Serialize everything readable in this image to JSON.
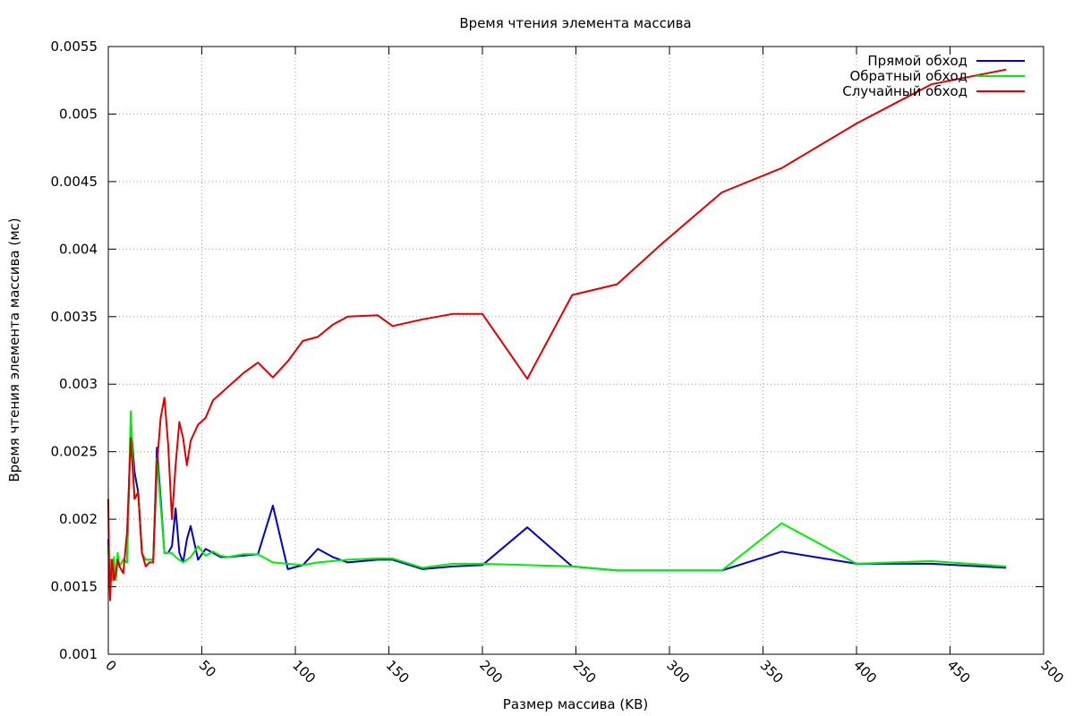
{
  "chart_data": {
    "type": "line",
    "title": "Время чтения элемента массива",
    "xlabel": "Размер массива (KB)",
    "ylabel": "Время чтения элемента массива (мс)",
    "xlim": [
      0,
      500
    ],
    "ylim": [
      0.001,
      0.0055
    ],
    "xticks": [
      0,
      50,
      100,
      150,
      200,
      250,
      300,
      350,
      400,
      450,
      500
    ],
    "yticks": [
      0.001,
      0.0015,
      0.002,
      0.0025,
      0.003,
      0.0035,
      0.004,
      0.0045,
      0.005,
      0.0055
    ],
    "xtick_labels": [
      "0",
      "50",
      "100",
      "150",
      "200",
      "250",
      "300",
      "350",
      "400",
      "450",
      "500"
    ],
    "ytick_labels": [
      "0.001",
      "0.0015",
      "0.002",
      "0.0025",
      "0.003",
      "0.0035",
      "0.004",
      "0.0045",
      "0.005",
      "0.0055"
    ],
    "grid": true,
    "legend_position": "top-right",
    "series": [
      {
        "name": "Прямой обход",
        "color": "#0000cc",
        "x": [
          0,
          0.5,
          1,
          1.5,
          2,
          3,
          4,
          5,
          6,
          8,
          10,
          12,
          14,
          16,
          18,
          20,
          22,
          24,
          26,
          28,
          30,
          32,
          34,
          36,
          38,
          40,
          42,
          44,
          48,
          52,
          56,
          60,
          64,
          72,
          80,
          88,
          96,
          104,
          112,
          120,
          128,
          144,
          152,
          168,
          184,
          200,
          224,
          248,
          272,
          296,
          328,
          360,
          400,
          440,
          480
        ],
        "y": [
          0.00185,
          0.0016,
          0.00147,
          0.0017,
          0.00155,
          0.00168,
          0.00155,
          0.00172,
          0.00165,
          0.0017,
          0.00168,
          0.00272,
          0.00235,
          0.0022,
          0.00175,
          0.0017,
          0.0017,
          0.0017,
          0.00253,
          0.00215,
          0.00175,
          0.00175,
          0.0018,
          0.00208,
          0.00175,
          0.00168,
          0.00185,
          0.00195,
          0.0017,
          0.00178,
          0.00175,
          0.00172,
          0.00172,
          0.00173,
          0.00174,
          0.0021,
          0.00163,
          0.00166,
          0.00178,
          0.00172,
          0.00168,
          0.0017,
          0.0017,
          0.00163,
          0.00165,
          0.00166,
          0.00194,
          0.00165,
          0.00162,
          0.00162,
          0.00162,
          0.00176,
          0.00167,
          0.00167,
          0.00164
        ]
      },
      {
        "name": "Обратный обход",
        "color": "#00ee00",
        "x": [
          0,
          0.5,
          1,
          1.5,
          2,
          3,
          4,
          5,
          6,
          8,
          10,
          12,
          14,
          16,
          18,
          20,
          22,
          24,
          26,
          28,
          30,
          32,
          34,
          36,
          38,
          40,
          42,
          44,
          48,
          52,
          56,
          60,
          64,
          72,
          80,
          88,
          96,
          104,
          112,
          120,
          128,
          144,
          152,
          168,
          184,
          200,
          224,
          248,
          272,
          296,
          328,
          360,
          400,
          440,
          480
        ],
        "y": [
          0.0018,
          0.00158,
          0.0015,
          0.0017,
          0.00155,
          0.00172,
          0.00155,
          0.00175,
          0.00165,
          0.0017,
          0.00168,
          0.0028,
          0.00215,
          0.0022,
          0.00175,
          0.0017,
          0.0017,
          0.0017,
          0.00245,
          0.0021,
          0.00175,
          0.00175,
          0.00175,
          0.00172,
          0.0017,
          0.00168,
          0.0017,
          0.00172,
          0.0018,
          0.00173,
          0.00176,
          0.00173,
          0.00172,
          0.00174,
          0.00174,
          0.00168,
          0.00167,
          0.00166,
          0.00168,
          0.00169,
          0.0017,
          0.00171,
          0.00171,
          0.00164,
          0.00167,
          0.00167,
          0.00166,
          0.00165,
          0.00162,
          0.00162,
          0.00162,
          0.00197,
          0.00167,
          0.00169,
          0.00165
        ]
      },
      {
        "name": "Случайный обход",
        "color": "#dd0000",
        "x": [
          0,
          0.5,
          1,
          1.5,
          2,
          3,
          4,
          5,
          6,
          8,
          10,
          12,
          14,
          16,
          18,
          20,
          22,
          24,
          26,
          28,
          30,
          32,
          34,
          36,
          38,
          40,
          42,
          44,
          48,
          52,
          56,
          60,
          64,
          72,
          80,
          88,
          96,
          104,
          112,
          120,
          128,
          144,
          152,
          168,
          184,
          200,
          224,
          248,
          272,
          296,
          328,
          360,
          400,
          440,
          480
        ],
        "y": [
          0.00215,
          0.0016,
          0.0014,
          0.0016,
          0.0017,
          0.00155,
          0.0016,
          0.0017,
          0.00165,
          0.0016,
          0.0019,
          0.0026,
          0.00215,
          0.0022,
          0.00175,
          0.00165,
          0.00168,
          0.00168,
          0.0024,
          0.00275,
          0.0029,
          0.00255,
          0.002,
          0.0024,
          0.00272,
          0.0026,
          0.0024,
          0.00258,
          0.0027,
          0.00275,
          0.00288,
          0.00293,
          0.00298,
          0.00308,
          0.00316,
          0.00305,
          0.00317,
          0.00332,
          0.00335,
          0.00344,
          0.0035,
          0.00351,
          0.00343,
          0.00348,
          0.00352,
          0.00352,
          0.00304,
          0.00366,
          0.00374,
          0.00404,
          0.00442,
          0.0046,
          0.00493,
          0.00522,
          0.00533
        ]
      }
    ]
  }
}
